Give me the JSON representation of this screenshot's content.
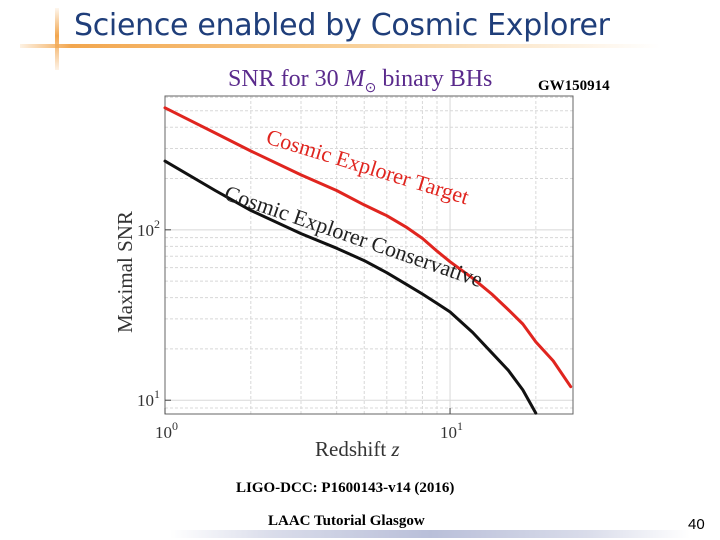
{
  "slide": {
    "title": "Science enabled by Cosmic Explorer",
    "reference": "LIGO-DCC: P1600143-v14 (2016)",
    "footer": "LAAC Tutorial Glasgow",
    "page_number": "40"
  },
  "chart_data": {
    "type": "line",
    "title_text": "SNR for 30 ",
    "title_math": "M",
    "title_sub": "⊙",
    "title_end": " binary BHs",
    "annotation": "GW150914",
    "xlabel": "Redshift",
    "xlabel_var": "z",
    "ylabel": "Maximal SNR",
    "xscale": "log",
    "yscale": "log",
    "xlim": [
      1,
      27
    ],
    "ylim": [
      8.3,
      610
    ],
    "x_ticks": [
      {
        "base": "10",
        "exp": "0",
        "value": 1
      },
      {
        "base": "10",
        "exp": "1",
        "value": 10
      }
    ],
    "y_ticks": [
      {
        "base": "10",
        "exp": "1",
        "value": 10
      },
      {
        "base": "10",
        "exp": "2",
        "value": 100
      }
    ],
    "grid": true,
    "series": [
      {
        "name": "Cosmic Explorer Target",
        "color": "#e0251f",
        "points": [
          [
            1,
            520
          ],
          [
            1.5,
            370
          ],
          [
            2,
            290
          ],
          [
            3,
            210
          ],
          [
            4,
            170
          ],
          [
            5,
            140
          ],
          [
            6,
            121
          ],
          [
            7,
            104
          ],
          [
            8,
            89
          ],
          [
            9,
            75
          ],
          [
            10,
            65
          ],
          [
            12,
            52
          ],
          [
            14,
            42
          ],
          [
            16,
            34
          ],
          [
            18,
            28
          ],
          [
            20,
            22
          ],
          [
            23,
            17
          ],
          [
            26.5,
            12
          ]
        ]
      },
      {
        "name": "Cosmic Explorer Conservative",
        "color": "#111111",
        "points": [
          [
            1,
            253
          ],
          [
            1.5,
            170
          ],
          [
            2,
            130
          ],
          [
            3,
            95
          ],
          [
            4,
            78
          ],
          [
            5,
            66
          ],
          [
            6,
            56
          ],
          [
            7,
            48
          ],
          [
            8,
            42
          ],
          [
            9,
            37
          ],
          [
            10,
            33
          ],
          [
            12,
            25
          ],
          [
            14,
            19
          ],
          [
            16,
            15
          ],
          [
            18,
            11.5
          ],
          [
            20,
            8.4
          ]
        ]
      }
    ]
  }
}
